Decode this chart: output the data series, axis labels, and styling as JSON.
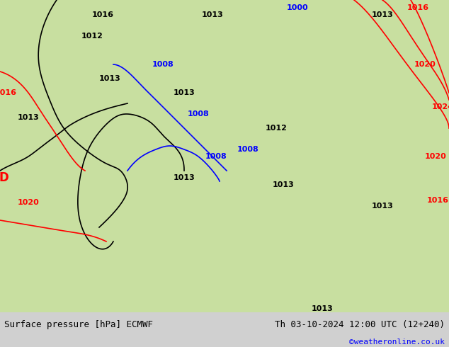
{
  "title_left": "Surface pressure [hPa] ECMWF",
  "title_right": "Th 03-10-2024 12:00 UTC (12+240)",
  "credit": "©weatheronline.co.uk",
  "bg_color": "#e8f5e8",
  "map_bg": "#c8e6c8",
  "border_color": "#000000",
  "bottom_bar_color": "#d0d0d0",
  "bottom_bar_height": 0.1,
  "figsize": [
    6.34,
    4.9
  ],
  "dpi": 100
}
